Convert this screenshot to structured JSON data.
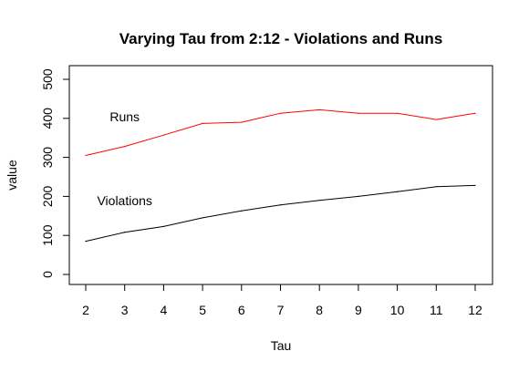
{
  "chart_data": {
    "type": "line",
    "title": "Varying Tau from 2:12 - Violations and Runs",
    "xlabel": "Tau",
    "ylabel": "value",
    "x": [
      2,
      3,
      4,
      5,
      6,
      7,
      8,
      9,
      10,
      11,
      12
    ],
    "xlim": [
      2,
      12
    ],
    "ylim": [
      0,
      500
    ],
    "yticks": [
      0,
      100,
      200,
      300,
      400,
      500
    ],
    "grid": false,
    "series": [
      {
        "name": "Runs",
        "color": "#ff0000",
        "values": [
          305,
          328,
          357,
          387,
          390,
          413,
          422,
          413,
          413,
          397,
          413
        ]
      },
      {
        "name": "Violations",
        "color": "#000000",
        "values": [
          85,
          108,
          123,
          145,
          163,
          178,
          190,
          200,
          212,
          225,
          228
        ]
      }
    ],
    "annotations": [
      {
        "text": "Runs",
        "x": 3.0,
        "y": 392
      },
      {
        "text": "Violations",
        "x": 3.0,
        "y": 177
      }
    ]
  }
}
